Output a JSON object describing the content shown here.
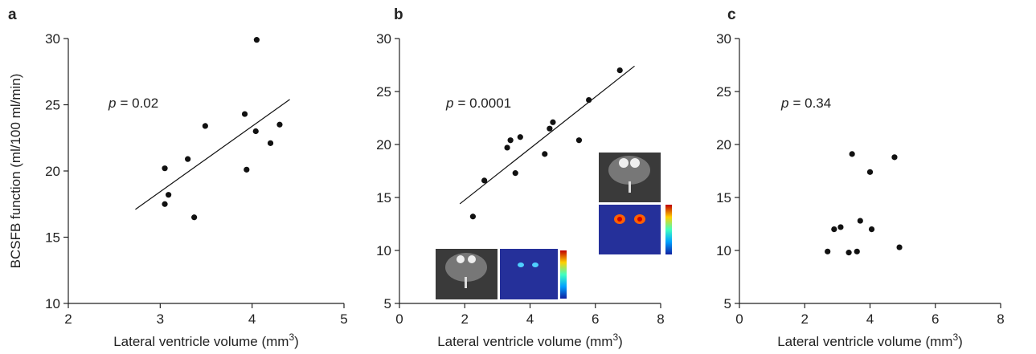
{
  "chart_data": [
    {
      "type": "scatter",
      "panel": "a",
      "ylabel": "BCSFB function (ml/100 ml/min)",
      "xlabel": "Lateral ventricle volume (mm",
      "xlabel_sup": "3",
      "xlabel_end": ")",
      "annotation_var": "p",
      "annotation": "= 0.02",
      "x": [
        3.05,
        3.09,
        3.05,
        3.3,
        3.49,
        3.37,
        3.92,
        3.94,
        4.05,
        4.04,
        4.2,
        4.3
      ],
      "y": [
        20.2,
        18.2,
        17.5,
        20.9,
        23.4,
        16.5,
        24.3,
        20.1,
        29.9,
        23.0,
        22.1,
        23.5
      ],
      "trendline": {
        "x": [
          2.73,
          4.41
        ],
        "y": [
          17.1,
          25.4
        ]
      },
      "xlim": [
        2,
        5
      ],
      "xticks": [
        2,
        3,
        4,
        5
      ],
      "ylim": [
        10,
        30
      ],
      "yticks": [
        10,
        15,
        20,
        25,
        30
      ]
    },
    {
      "type": "scatter",
      "panel": "b",
      "xlabel": "Lateral ventricle volume (mm",
      "xlabel_sup": "3",
      "xlabel_end": ")",
      "annotation_var": "p",
      "annotation": "= 0.0001",
      "x": [
        2.25,
        2.6,
        3.3,
        3.4,
        3.55,
        3.7,
        4.45,
        4.6,
        4.7,
        5.5,
        5.8,
        6.75
      ],
      "y": [
        13.2,
        16.6,
        19.7,
        20.4,
        17.3,
        20.7,
        19.1,
        21.5,
        22.1,
        20.4,
        24.2,
        27.0
      ],
      "trendline": {
        "x": [
          1.85,
          7.2
        ],
        "y": [
          14.4,
          27.4
        ]
      },
      "xlim": [
        0,
        8
      ],
      "xticks": [
        0,
        2,
        4,
        6,
        8
      ],
      "ylim": [
        5,
        30
      ],
      "yticks": [
        5,
        10,
        15,
        20,
        25,
        30
      ]
    },
    {
      "type": "scatter",
      "panel": "c",
      "xlabel": "Lateral ventricle volume (mm",
      "xlabel_sup": "3",
      "xlabel_end": ")",
      "annotation_var": "p",
      "annotation": "= 0.34",
      "x": [
        2.7,
        2.9,
        3.1,
        3.35,
        3.45,
        3.6,
        3.7,
        4.0,
        4.05,
        4.75,
        4.9
      ],
      "y": [
        9.9,
        12.0,
        12.2,
        9.8,
        19.1,
        9.9,
        12.8,
        17.4,
        12.0,
        18.8,
        10.3
      ],
      "xlim": [
        0,
        8
      ],
      "xticks": [
        0,
        2,
        4,
        6,
        8
      ],
      "ylim": [
        5,
        30
      ],
      "yticks": [
        5,
        10,
        15,
        20,
        25,
        30
      ]
    }
  ]
}
